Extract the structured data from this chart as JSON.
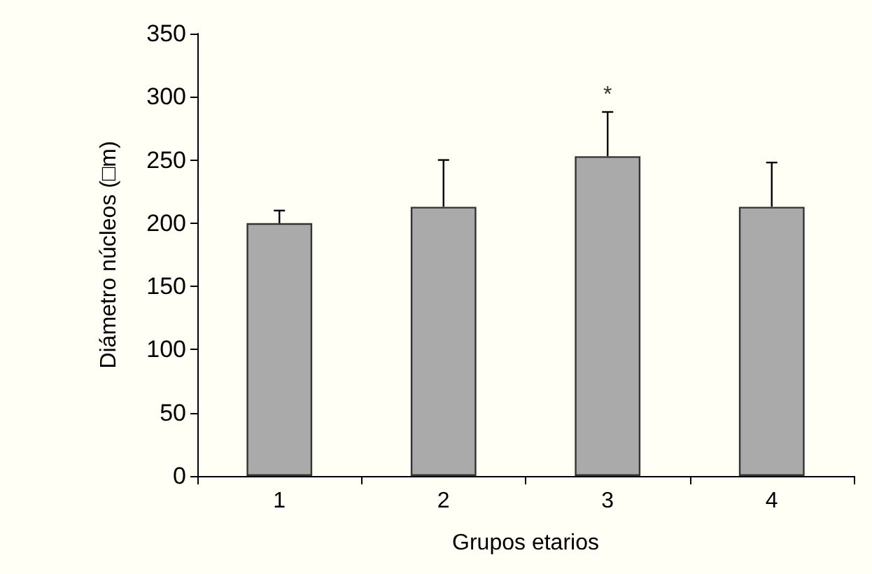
{
  "chart_data": {
    "type": "bar",
    "xlabel": "Grupos etarios",
    "ylabel": "Diámetro núcleos (□m)",
    "categories": [
      "1",
      "2",
      "3",
      "4"
    ],
    "values": [
      200,
      213,
      253,
      213
    ],
    "color": "#aaaaaa",
    "errors": [
      [
        200,
        210
      ],
      [
        213,
        250
      ],
      [
        253,
        288
      ],
      [
        213,
        248
      ]
    ],
    "ylim": [
      0,
      350
    ],
    "yticks": [
      0,
      50,
      100,
      150,
      200,
      250,
      300,
      350
    ],
    "grid": false,
    "annotations": [
      "*"
    ]
  }
}
